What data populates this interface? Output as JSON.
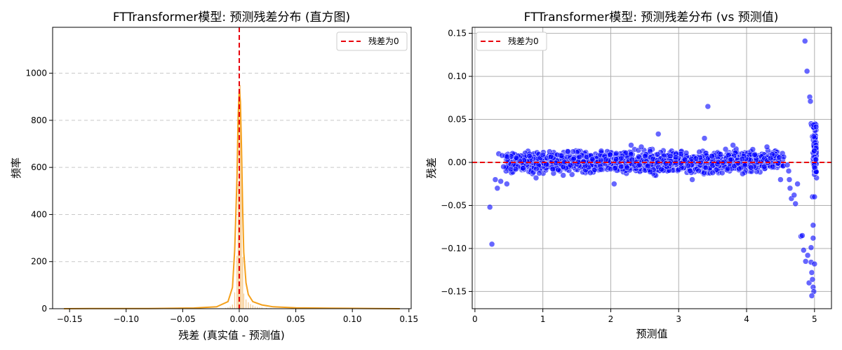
{
  "chart_data": [
    {
      "type": "bar",
      "title": "FTTransformer模型: 预测残差分布 (直方图)",
      "xlabel": "残差 (真实值 - 预测值)",
      "ylabel": "频率",
      "xlim": [
        -0.165,
        0.152
      ],
      "ylim": [
        0,
        1195
      ],
      "xticks": [
        -0.15,
        -0.1,
        -0.05,
        0.0,
        0.05,
        0.1,
        0.15
      ],
      "xtick_labels": [
        "−0.15",
        "−0.10",
        "−0.05",
        "0.00",
        "0.05",
        "0.10",
        "0.15"
      ],
      "yticks": [
        0,
        200,
        400,
        600,
        800,
        1000
      ],
      "ytick_labels": [
        "0",
        "200",
        "400",
        "600",
        "800",
        "1000"
      ],
      "grid": "y-dashed",
      "bar_color": "#f5c98a",
      "kde_color": "#f5a11c",
      "bins": [
        [
          -0.012,
          4
        ],
        [
          -0.01,
          6
        ],
        [
          -0.008,
          10
        ],
        [
          -0.006,
          18
        ],
        [
          -0.004,
          70
        ],
        [
          -0.002,
          225
        ],
        [
          -0.001,
          530
        ],
        [
          0.0,
          965
        ],
        [
          0.001,
          950
        ],
        [
          0.002,
          600
        ],
        [
          0.003,
          220
        ],
        [
          0.004,
          65
        ],
        [
          0.006,
          40
        ],
        [
          0.008,
          28
        ],
        [
          0.01,
          20
        ],
        [
          0.012,
          15
        ],
        [
          0.014,
          10
        ],
        [
          0.016,
          8
        ],
        [
          0.018,
          6
        ],
        [
          0.02,
          5
        ],
        [
          0.024,
          4
        ],
        [
          0.028,
          3
        ],
        [
          0.032,
          2
        ]
      ],
      "kde": [
        [
          -0.155,
          0
        ],
        [
          -0.12,
          1
        ],
        [
          -0.08,
          1
        ],
        [
          -0.04,
          3
        ],
        [
          -0.02,
          8
        ],
        [
          -0.01,
          30
        ],
        [
          -0.006,
          90
        ],
        [
          -0.004,
          250
        ],
        [
          -0.002,
          560
        ],
        [
          -0.001,
          820
        ],
        [
          0,
          930
        ],
        [
          0.001,
          880
        ],
        [
          0.002,
          680
        ],
        [
          0.003,
          430
        ],
        [
          0.004,
          240
        ],
        [
          0.006,
          110
        ],
        [
          0.008,
          60
        ],
        [
          0.012,
          30
        ],
        [
          0.02,
          16
        ],
        [
          0.03,
          8
        ],
        [
          0.05,
          4
        ],
        [
          0.08,
          2
        ],
        [
          0.12,
          1
        ],
        [
          0.142,
          0
        ]
      ],
      "refline": {
        "x": 0,
        "color": "#e8000b",
        "label": "残差为0"
      },
      "legend": {
        "position": "top-right",
        "label": "残差为0"
      }
    },
    {
      "type": "scatter",
      "title": "FTTransformer模型: 预测残差分布 (vs 预测值)",
      "xlabel": "预测值",
      "ylabel": "残差",
      "xlim": [
        -0.04,
        5.25
      ],
      "ylim": [
        -0.17,
        0.157
      ],
      "xticks": [
        0,
        1,
        2,
        3,
        4,
        5
      ],
      "xtick_labels": [
        "0",
        "1",
        "2",
        "3",
        "4",
        "5"
      ],
      "yticks": [
        -0.15,
        -0.1,
        -0.05,
        0.0,
        0.05,
        0.1,
        0.15
      ],
      "ytick_labels": [
        "−0.15",
        "−0.10",
        "−0.05",
        "0.00",
        "0.05",
        "0.10",
        "0.15"
      ],
      "grid": "both",
      "point_color": "#0000ff",
      "band": {
        "x": [
          0.45,
          4.55
        ],
        "spread": 0.009
      },
      "points": [
        [
          0.22,
          -0.052
        ],
        [
          0.25,
          -0.095
        ],
        [
          0.3,
          -0.02
        ],
        [
          0.33,
          -0.03
        ],
        [
          0.35,
          0.01
        ],
        [
          0.38,
          -0.022
        ],
        [
          0.42,
          -0.005
        ],
        [
          0.47,
          -0.025
        ],
        [
          0.4,
          0.008
        ],
        [
          0.6,
          -0.008
        ],
        [
          0.9,
          -0.018
        ],
        [
          1.3,
          -0.015
        ],
        [
          1.7,
          -0.012
        ],
        [
          2.05,
          -0.025
        ],
        [
          2.3,
          0.02
        ],
        [
          2.45,
          0.018
        ],
        [
          2.7,
          0.033
        ],
        [
          3.2,
          -0.02
        ],
        [
          3.38,
          0.028
        ],
        [
          3.43,
          0.065
        ],
        [
          3.5,
          -0.012
        ],
        [
          3.8,
          0.02
        ],
        [
          4.3,
          0.018
        ],
        [
          4.5,
          -0.02
        ],
        [
          4.6,
          -0.003
        ],
        [
          4.62,
          -0.01
        ],
        [
          4.63,
          -0.02
        ],
        [
          4.64,
          -0.03
        ],
        [
          4.66,
          -0.042
        ],
        [
          4.7,
          -0.038
        ],
        [
          4.72,
          -0.048
        ],
        [
          4.75,
          -0.025
        ],
        [
          4.8,
          -0.086
        ],
        [
          4.82,
          -0.085
        ],
        [
          4.84,
          -0.102
        ],
        [
          4.86,
          0.141
        ],
        [
          4.87,
          -0.115
        ],
        [
          4.89,
          0.106
        ],
        [
          4.9,
          -0.108
        ],
        [
          4.92,
          -0.14
        ],
        [
          4.93,
          0.076
        ],
        [
          4.94,
          0.071
        ],
        [
          4.95,
          0.045
        ],
        [
          4.96,
          0.043
        ],
        [
          4.97,
          0.03
        ],
        [
          4.97,
          -0.04
        ],
        [
          4.98,
          -0.088
        ],
        [
          4.95,
          -0.099
        ],
        [
          4.95,
          -0.116
        ],
        [
          4.96,
          -0.128
        ],
        [
          4.97,
          -0.136
        ],
        [
          4.98,
          -0.145
        ],
        [
          4.99,
          -0.15
        ],
        [
          4.96,
          -0.155
        ],
        [
          4.98,
          -0.073
        ],
        [
          5.0,
          -0.118
        ],
        [
          5.0,
          0.022
        ],
        [
          5.01,
          0.015
        ],
        [
          5.02,
          0.01
        ],
        [
          5.0,
          0.005
        ],
        [
          5.01,
          -0.005
        ],
        [
          5.02,
          -0.012
        ],
        [
          5.03,
          -0.018
        ],
        [
          5.0,
          -0.04
        ],
        [
          4.99,
          0.04
        ],
        [
          5.0,
          0.032
        ],
        [
          5.01,
          0.028
        ]
      ],
      "refline": {
        "y": 0,
        "color": "#e8000b",
        "label": "残差为0"
      },
      "legend": {
        "position": "top-left",
        "label": "残差为0"
      }
    }
  ]
}
